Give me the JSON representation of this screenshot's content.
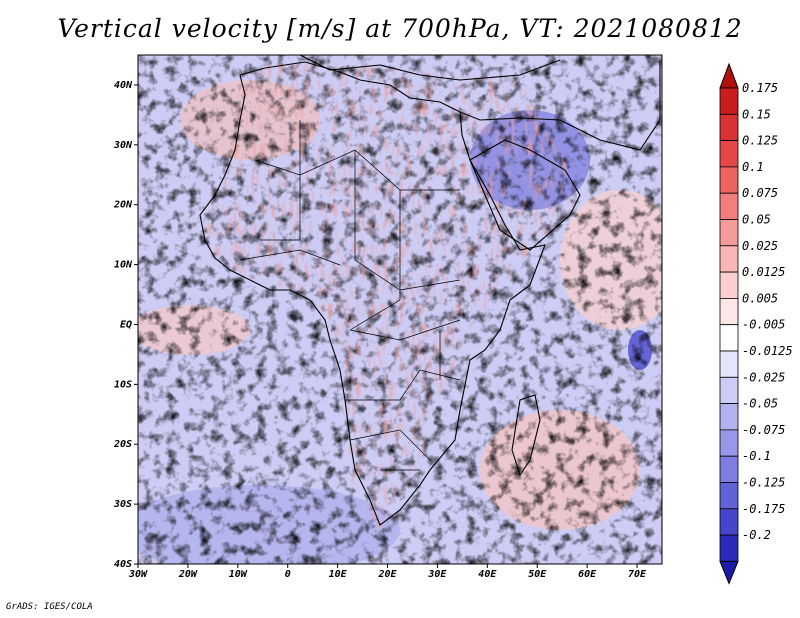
{
  "title": "Vertical velocity [m/s] at 700hPa, VT: 2021080812",
  "credit": "GrADS: IGES/COLA",
  "map": {
    "lon_range": [
      -30,
      75
    ],
    "lat_range": [
      -40,
      45
    ],
    "x_ticks": [
      {
        "lon": -30,
        "label": "30W"
      },
      {
        "lon": -20,
        "label": "20W"
      },
      {
        "lon": -10,
        "label": "10W"
      },
      {
        "lon": 0,
        "label": "0"
      },
      {
        "lon": 10,
        "label": "10E"
      },
      {
        "lon": 20,
        "label": "20E"
      },
      {
        "lon": 30,
        "label": "30E"
      },
      {
        "lon": 40,
        "label": "40E"
      },
      {
        "lon": 50,
        "label": "50E"
      },
      {
        "lon": 60,
        "label": "60E"
      },
      {
        "lon": 70,
        "label": "70E"
      }
    ],
    "y_ticks": [
      {
        "lat": 40,
        "label": "40N"
      },
      {
        "lat": 30,
        "label": "30N"
      },
      {
        "lat": 20,
        "label": "20N"
      },
      {
        "lat": 10,
        "label": "10N"
      },
      {
        "lat": 0,
        "label": "EQ"
      },
      {
        "lat": -10,
        "label": "10S"
      },
      {
        "lat": -20,
        "label": "20S"
      },
      {
        "lat": -30,
        "label": "30S"
      },
      {
        "lat": -40,
        "label": "40S"
      }
    ]
  },
  "colorbar": {
    "levels": [
      {
        "label": "0.175",
        "color": "#c81e1e"
      },
      {
        "label": "0.15",
        "color": "#d83232"
      },
      {
        "label": "0.125",
        "color": "#e44848"
      },
      {
        "label": "0.1",
        "color": "#ee6262"
      },
      {
        "label": "0.075",
        "color": "#f27e7e"
      },
      {
        "label": "0.05",
        "color": "#f69a9a"
      },
      {
        "label": "0.025",
        "color": "#f8b6b6"
      },
      {
        "label": "0.0125",
        "color": "#fbcfcf"
      },
      {
        "label": "0.005",
        "color": "#fde6e6"
      },
      {
        "label": "-0.005",
        "color": "#ffffff"
      },
      {
        "label": "-0.0125",
        "color": "#e4e4fb"
      },
      {
        "label": "-0.025",
        "color": "#ccccf6"
      },
      {
        "label": "-0.05",
        "color": "#b2b2f0"
      },
      {
        "label": "-0.075",
        "color": "#9898ea"
      },
      {
        "label": "-0.1",
        "color": "#7e7ee2"
      },
      {
        "label": "-0.125",
        "color": "#6262d8"
      },
      {
        "label": "-0.175",
        "color": "#4646cc"
      },
      {
        "label": "-0.2",
        "color": "#2a2ab8"
      }
    ],
    "top_color": "#b01010",
    "bottom_color": "#1c1ca8"
  }
}
